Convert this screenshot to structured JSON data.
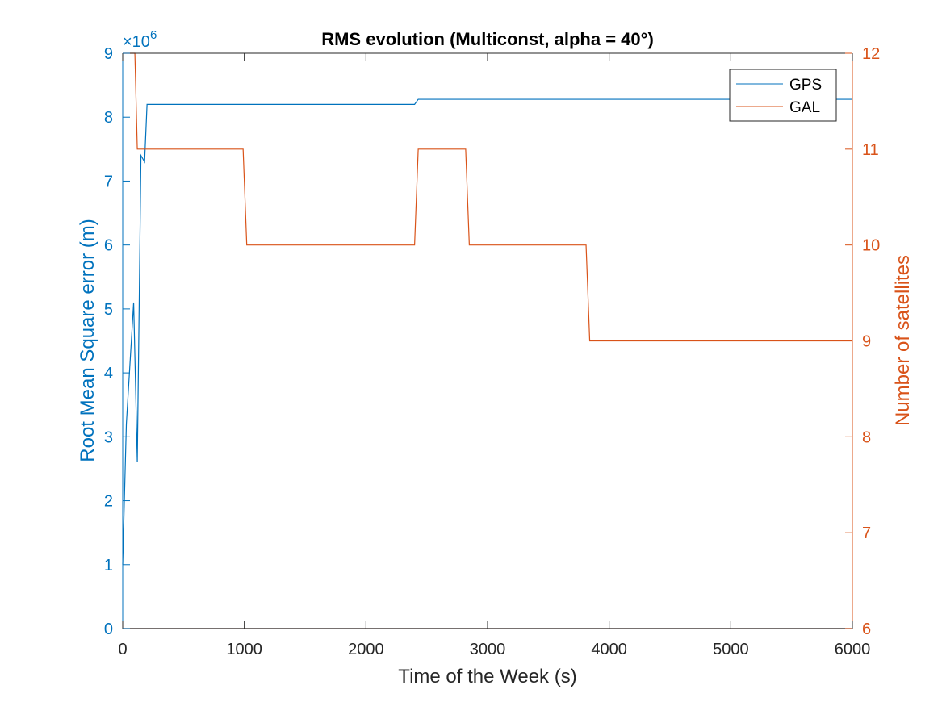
{
  "chart_data": {
    "type": "line",
    "title": "RMS evolution (Multiconst, alpha = 40°)",
    "xlabel": "Time of the Week (s)",
    "ylabel_left": "Root Mean Square error (m)",
    "ylabel_right": "Number of satellites",
    "xlim": [
      0,
      6000
    ],
    "ylim_left": [
      0,
      9
    ],
    "ylim_right": [
      6,
      12
    ],
    "left_axis_exponent_label": "×10",
    "left_axis_exponent": "6",
    "x_ticks": [
      0,
      1000,
      2000,
      3000,
      4000,
      5000,
      6000
    ],
    "y_ticks_left": [
      0,
      1,
      2,
      3,
      4,
      5,
      6,
      7,
      8,
      9
    ],
    "y_ticks_right": [
      6,
      7,
      8,
      9,
      10,
      11,
      12
    ],
    "legend_position": "top-right",
    "grid": false,
    "colors": {
      "left_axis": "#0072BD",
      "right_axis": "#D95319",
      "axes": "#262626"
    },
    "series": [
      {
        "name": "GPS",
        "axis": "left",
        "color": "#0072BD",
        "x": [
          0,
          30,
          90,
          120,
          150,
          180,
          200,
          2400,
          2430,
          6000
        ],
        "y": [
          1.0,
          3.2,
          5.1,
          2.6,
          7.4,
          7.3,
          8.2,
          8.2,
          8.28,
          8.28
        ]
      },
      {
        "name": "GAL",
        "axis": "right",
        "color": "#D95319",
        "x": [
          0,
          100,
          120,
          990,
          1020,
          2400,
          2430,
          2820,
          2850,
          3810,
          3840,
          6000
        ],
        "y": [
          12,
          12,
          11,
          11,
          10,
          10,
          11,
          11,
          10,
          10,
          9,
          9
        ]
      },
      {
        "name": "",
        "axis": "left",
        "color": "#0072BD",
        "x": [
          0,
          6000
        ],
        "y": [
          0,
          0
        ]
      },
      {
        "name": "",
        "axis": "right",
        "color": "#D95319",
        "x": [
          0,
          6000
        ],
        "y": [
          6,
          6
        ]
      }
    ]
  }
}
